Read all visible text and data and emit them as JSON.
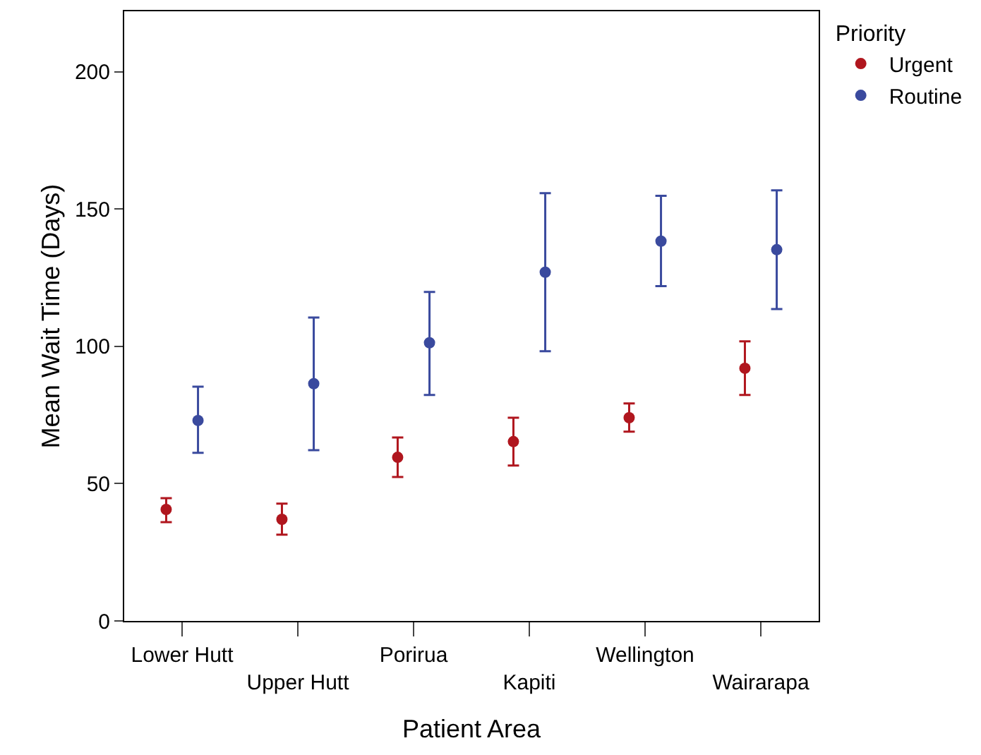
{
  "chart_data": {
    "type": "scatter",
    "xlabel": "Patient Area",
    "ylabel": "Mean Wait Time (Days)",
    "legend_title": "Priority",
    "legend": "top right",
    "marker": "circle",
    "grid": false,
    "categories": [
      "Lower Hutt",
      "Upper Hutt",
      "Porirua",
      "Kapiti",
      "Wellington",
      "Wairarapa"
    ],
    "ylim": [
      0,
      222
    ],
    "yticks": [
      0,
      50,
      100,
      150,
      200
    ],
    "series": [
      {
        "name": "Urgent",
        "color": "#b0161e",
        "values": [
          40.6,
          37,
          59.6,
          65.3,
          74,
          92
        ],
        "errors": [
          [
            36,
            44.7
          ],
          [
            31.4,
            42.7
          ],
          [
            52.4,
            66.8
          ],
          [
            56.6,
            74
          ],
          [
            68.9,
            79.2
          ],
          [
            82.3,
            101.8
          ]
        ]
      },
      {
        "name": "Routine",
        "color": "#3a4a9e",
        "values": [
          73,
          86.4,
          101.3,
          127,
          138.3,
          135.2
        ],
        "errors": [
          [
            61.2,
            85.3
          ],
          [
            62.2,
            110.5
          ],
          [
            82.3,
            119.8
          ],
          [
            98.2,
            155.8
          ],
          [
            121.9,
            154.8
          ],
          [
            113.6,
            156.8
          ]
        ]
      }
    ]
  }
}
